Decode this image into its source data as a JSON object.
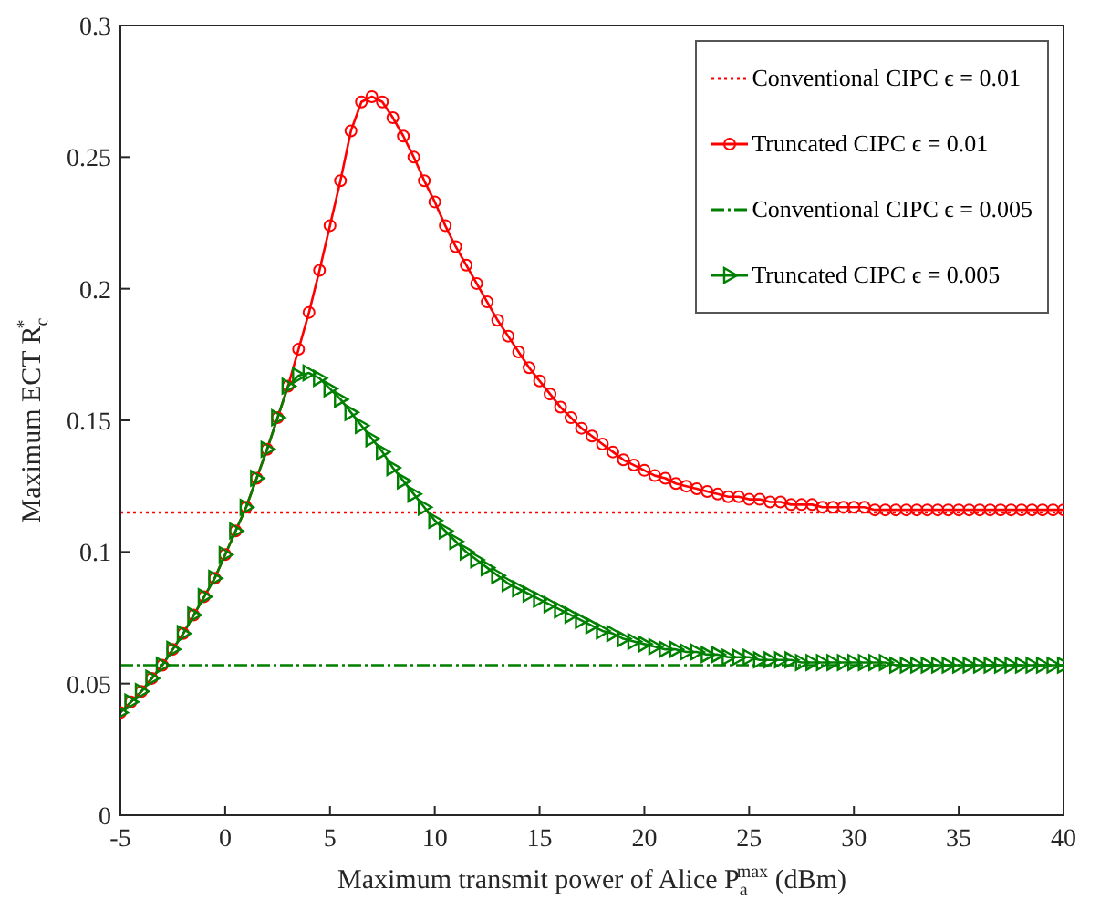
{
  "chart_data": {
    "type": "line",
    "xlabel": "Maximum transmit power of Alice P$_{a}$$^{max}$ (dBm)",
    "ylabel": "Maximum ECT R$_{c}$$^{*}$",
    "xlim": [
      -5,
      40
    ],
    "xticks": [
      -5,
      0,
      5,
      10,
      15,
      20,
      25,
      30,
      35,
      40
    ],
    "ylim": [
      0,
      0.3
    ],
    "yticks": [
      0,
      0.05,
      0.1,
      0.15,
      0.2,
      0.25,
      0.3
    ],
    "legend": "top right",
    "x": [
      -5,
      -4.5,
      -4,
      -3.5,
      -3,
      -2.5,
      -2,
      -1.5,
      -1,
      -0.5,
      0,
      0.5,
      1,
      1.5,
      2,
      2.5,
      3,
      3.5,
      4,
      4.5,
      5,
      5.5,
      6,
      6.5,
      7,
      7.5,
      8,
      8.5,
      9,
      9.5,
      10,
      10.5,
      11,
      11.5,
      12,
      12.5,
      13,
      13.5,
      14,
      14.5,
      15,
      15.5,
      16,
      16.5,
      17,
      17.5,
      18,
      18.5,
      19,
      19.5,
      20,
      20.5,
      21,
      21.5,
      22,
      22.5,
      23,
      23.5,
      24,
      24.5,
      25,
      25.5,
      26,
      26.5,
      27,
      27.5,
      28,
      28.5,
      29,
      29.5,
      30,
      30.5,
      31,
      31.5,
      32,
      32.5,
      33,
      33.5,
      34,
      34.5,
      35,
      35.5,
      36,
      36.5,
      37,
      37.5,
      38,
      38.5,
      39,
      39.5,
      40
    ],
    "series": [
      {
        "name": "Conventional CIPC ϵ = 0.01",
        "color": "#ff0000",
        "line_style": "dotted",
        "values": [
          0.115,
          0.115,
          0.115,
          0.115,
          0.115,
          0.115,
          0.115,
          0.115,
          0.115,
          0.115,
          0.115,
          0.115,
          0.115,
          0.115,
          0.115,
          0.115,
          0.115,
          0.115,
          0.115,
          0.115,
          0.115,
          0.115,
          0.115,
          0.115,
          0.115,
          0.115,
          0.115,
          0.115,
          0.115,
          0.115,
          0.115,
          0.115,
          0.115,
          0.115,
          0.115,
          0.115,
          0.115,
          0.115,
          0.115,
          0.115,
          0.115,
          0.115,
          0.115,
          0.115,
          0.115,
          0.115,
          0.115,
          0.115,
          0.115,
          0.115,
          0.115,
          0.115,
          0.115,
          0.115,
          0.115,
          0.115,
          0.115,
          0.115,
          0.115,
          0.115,
          0.115,
          0.115,
          0.115,
          0.115,
          0.115,
          0.115,
          0.115,
          0.115,
          0.115,
          0.115,
          0.115,
          0.115,
          0.115,
          0.115,
          0.115,
          0.115,
          0.115,
          0.115,
          0.115,
          0.115,
          0.115,
          0.115,
          0.115,
          0.115,
          0.115,
          0.115,
          0.115,
          0.115,
          0.115,
          0.115,
          0.115
        ]
      },
      {
        "name": "Truncated CIPC ϵ = 0.01",
        "color": "#ff0000",
        "marker": "circle",
        "line_style": "solid",
        "values": [
          0.039,
          0.043,
          0.047,
          0.052,
          0.057,
          0.063,
          0.069,
          0.076,
          0.083,
          0.09,
          0.099,
          0.108,
          0.117,
          0.128,
          0.139,
          0.151,
          0.163,
          0.177,
          0.191,
          0.207,
          0.224,
          0.241,
          0.26,
          0.271,
          0.273,
          0.271,
          0.265,
          0.258,
          0.25,
          0.241,
          0.233,
          0.224,
          0.216,
          0.209,
          0.202,
          0.195,
          0.188,
          0.182,
          0.176,
          0.17,
          0.165,
          0.16,
          0.155,
          0.151,
          0.147,
          0.144,
          0.141,
          0.138,
          0.135,
          0.133,
          0.131,
          0.129,
          0.128,
          0.126,
          0.125,
          0.124,
          0.123,
          0.122,
          0.121,
          0.121,
          0.12,
          0.12,
          0.119,
          0.119,
          0.118,
          0.118,
          0.118,
          0.117,
          0.117,
          0.117,
          0.117,
          0.117,
          0.116,
          0.116,
          0.116,
          0.116,
          0.116,
          0.116,
          0.116,
          0.116,
          0.116,
          0.116,
          0.116,
          0.116,
          0.116,
          0.116,
          0.116,
          0.116,
          0.116,
          0.116,
          0.116
        ]
      },
      {
        "name": "Conventional CIPC ϵ = 0.005",
        "color": "#008000",
        "line_style": "dashdot",
        "values": [
          0.057,
          0.057,
          0.057,
          0.057,
          0.057,
          0.057,
          0.057,
          0.057,
          0.057,
          0.057,
          0.057,
          0.057,
          0.057,
          0.057,
          0.057,
          0.057,
          0.057,
          0.057,
          0.057,
          0.057,
          0.057,
          0.057,
          0.057,
          0.057,
          0.057,
          0.057,
          0.057,
          0.057,
          0.057,
          0.057,
          0.057,
          0.057,
          0.057,
          0.057,
          0.057,
          0.057,
          0.057,
          0.057,
          0.057,
          0.057,
          0.057,
          0.057,
          0.057,
          0.057,
          0.057,
          0.057,
          0.057,
          0.057,
          0.057,
          0.057,
          0.057,
          0.057,
          0.057,
          0.057,
          0.057,
          0.057,
          0.057,
          0.057,
          0.057,
          0.057,
          0.057,
          0.057,
          0.057,
          0.057,
          0.057,
          0.057,
          0.057,
          0.057,
          0.057,
          0.057,
          0.057,
          0.057,
          0.057,
          0.057,
          0.057,
          0.057,
          0.057,
          0.057,
          0.057,
          0.057,
          0.057,
          0.057,
          0.057,
          0.057,
          0.057,
          0.057,
          0.057,
          0.057,
          0.057,
          0.057,
          0.057
        ]
      },
      {
        "name": "Truncated CIPC ϵ = 0.005",
        "color": "#008000",
        "marker": "triangle",
        "line_style": "solid",
        "values": [
          0.039,
          0.043,
          0.047,
          0.052,
          0.057,
          0.063,
          0.069,
          0.076,
          0.083,
          0.09,
          0.099,
          0.108,
          0.117,
          0.128,
          0.139,
          0.151,
          0.163,
          0.167,
          0.168,
          0.166,
          0.162,
          0.158,
          0.153,
          0.148,
          0.143,
          0.138,
          0.132,
          0.127,
          0.122,
          0.117,
          0.112,
          0.108,
          0.104,
          0.1,
          0.097,
          0.094,
          0.091,
          0.088,
          0.086,
          0.084,
          0.082,
          0.08,
          0.078,
          0.076,
          0.074,
          0.072,
          0.07,
          0.069,
          0.067,
          0.066,
          0.065,
          0.064,
          0.063,
          0.063,
          0.062,
          0.062,
          0.061,
          0.061,
          0.06,
          0.06,
          0.06,
          0.059,
          0.059,
          0.059,
          0.059,
          0.058,
          0.058,
          0.058,
          0.058,
          0.058,
          0.058,
          0.058,
          0.058,
          0.058,
          0.057,
          0.057,
          0.057,
          0.057,
          0.057,
          0.057,
          0.057,
          0.057,
          0.057,
          0.057,
          0.057,
          0.057,
          0.057,
          0.057,
          0.057,
          0.057,
          0.057
        ]
      }
    ]
  }
}
